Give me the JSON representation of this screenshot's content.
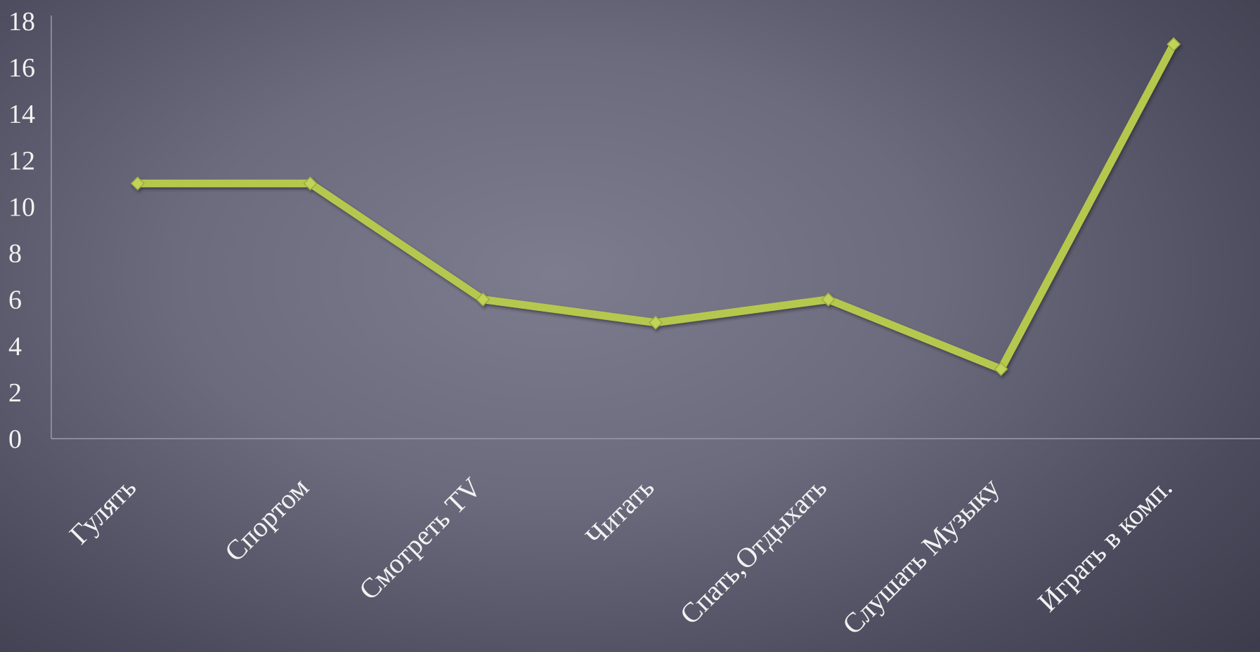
{
  "chart_data": {
    "type": "line",
    "categories": [
      "Гулять",
      "Спортом",
      "Смотреть TV",
      "Читать",
      "Спать,Отдыхать",
      "Слушать Музыку",
      "Играть в комп."
    ],
    "series": [
      {
        "values": [
          11,
          11,
          6,
          5,
          6,
          3,
          17
        ]
      }
    ],
    "y_ticks": [
      "0",
      "2",
      "4",
      "6",
      "8",
      "10",
      "12",
      "14",
      "16",
      "18"
    ],
    "ylim": [
      0,
      18
    ],
    "grid": false,
    "legend": "none",
    "colors": {
      "line": "#b5c84e",
      "marker": "#c3d35a",
      "axis": "#9a9aa8",
      "text": "#f2f2f2"
    }
  }
}
